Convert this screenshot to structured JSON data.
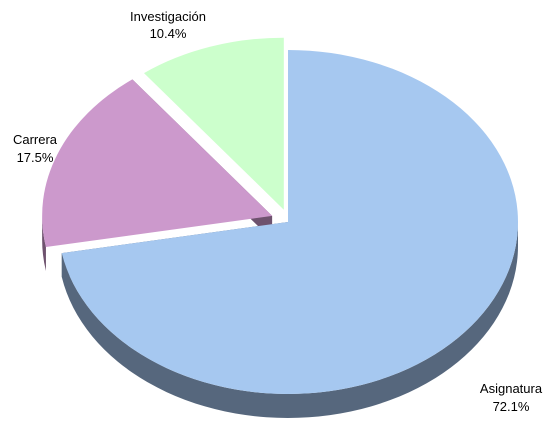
{
  "chart_data": {
    "type": "pie",
    "style": "3d-exploded",
    "title": "",
    "slices": [
      {
        "label": "Asignatura",
        "value": 72.1,
        "value_label": "72.1%",
        "color": "#A6C8F0",
        "side_color": "#56677D"
      },
      {
        "label": "Carrera",
        "value": 17.5,
        "value_label": "17.5%",
        "color": "#CC99CC",
        "side_color": "#6E526E"
      },
      {
        "label": "Investigación",
        "value": 10.4,
        "value_label": "10.4%",
        "color": "#CCFFCC",
        "side_color": "#6B866B"
      }
    ],
    "legend": "none"
  }
}
